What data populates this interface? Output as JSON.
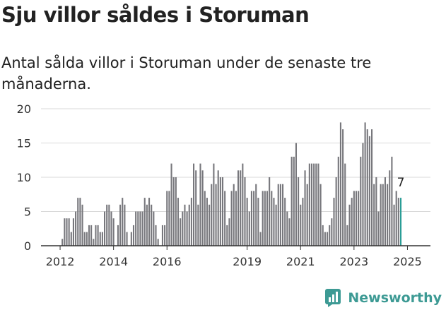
{
  "title": "Sju villor såldes i Storuman",
  "subtitle": "Antal sålda villor i Storuman under de senaste tre månaderna.",
  "brand": {
    "name": "Newsworthy",
    "icon": "newsworthy-logo-icon"
  },
  "colors": {
    "bar": "#77777c",
    "highlight": "#2a9d96",
    "grid": "#d9d9d9",
    "axis": "#333333"
  },
  "chart_data": {
    "type": "bar",
    "title": "Sju villor såldes i Storuman",
    "ylim": [
      0,
      20
    ],
    "yticks": [
      0,
      5,
      10,
      15,
      20
    ],
    "xtick_labels": [
      {
        "label": "2012",
        "index": 0
      },
      {
        "label": "2014",
        "index": 24
      },
      {
        "label": "2016",
        "index": 48
      },
      {
        "label": "2019",
        "index": 84
      },
      {
        "label": "2021",
        "index": 108
      },
      {
        "label": "2023",
        "index": 132
      },
      {
        "label": "2025",
        "index": 156
      }
    ],
    "highlight_label": "7",
    "grid": "horizontal",
    "values": [
      0,
      1,
      4,
      4,
      4,
      2,
      4,
      5,
      7,
      7,
      6,
      2,
      2,
      3,
      3,
      1,
      3,
      3,
      2,
      2,
      5,
      6,
      6,
      5,
      4,
      0,
      3,
      6,
      7,
      6,
      2,
      0,
      2,
      3,
      5,
      5,
      5,
      5,
      7,
      6,
      7,
      6,
      5,
      3,
      1,
      0,
      3,
      3,
      8,
      8,
      12,
      10,
      10,
      7,
      4,
      5,
      6,
      5,
      6,
      7,
      12,
      11,
      6,
      12,
      11,
      8,
      7,
      6,
      9,
      12,
      9,
      11,
      10,
      10,
      8,
      3,
      4,
      8,
      9,
      8,
      11,
      11,
      12,
      10,
      7,
      5,
      8,
      8,
      9,
      7,
      2,
      8,
      8,
      8,
      10,
      8,
      7,
      6,
      9,
      9,
      9,
      7,
      5,
      4,
      13,
      13,
      15,
      10,
      6,
      7,
      11,
      9,
      12,
      12,
      12,
      12,
      12,
      9,
      3,
      2,
      2,
      3,
      4,
      7,
      10,
      13,
      18,
      17,
      12,
      3,
      6,
      7,
      8,
      8,
      8,
      13,
      15,
      18,
      17,
      16,
      17,
      9,
      10,
      5,
      9,
      9,
      10,
      9,
      11,
      13,
      6,
      8,
      7,
      7
    ],
    "series": [
      {
        "name": "Antal sålda villor",
        "values": "see values"
      }
    ]
  }
}
